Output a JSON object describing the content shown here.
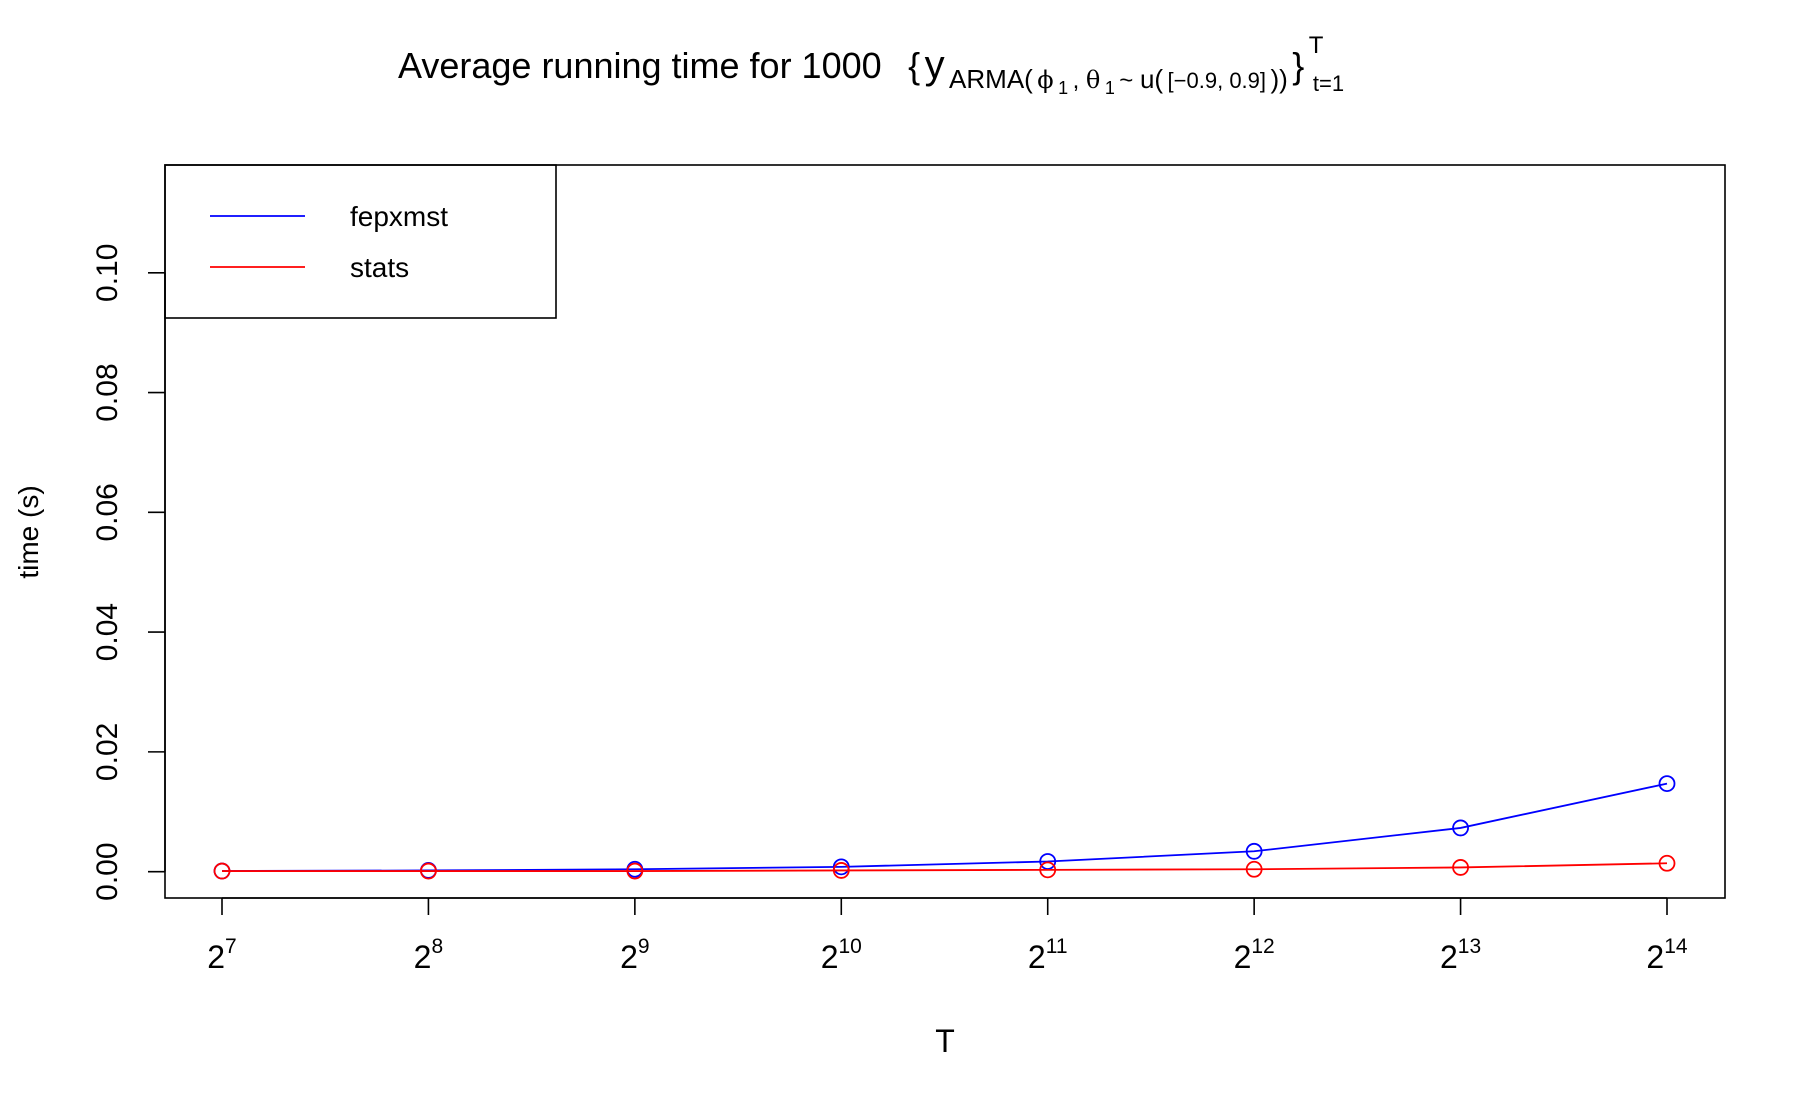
{
  "chart_data": {
    "type": "line",
    "title": {
      "main": "Average running time for 1000",
      "open_brace": "{",
      "y": "y",
      "sub_prefix": "ARMA(",
      "phi": "ϕ",
      "phi_sub": "1",
      "comma": ", ",
      "theta": "θ",
      "theta_sub": "1",
      "tilde": " ~ ",
      "dist": "u(",
      "range": "[−0.9, 0.9]",
      "close_sub": "))",
      "close_brace": "}",
      "sup": "T",
      "sub": "t=1"
    },
    "xlabel": "T",
    "ylabel": "time (s)",
    "x_tick_base": "2",
    "x_exponents": [
      "7",
      "8",
      "9",
      "10",
      "11",
      "12",
      "13",
      "14"
    ],
    "x_values": [
      128,
      256,
      512,
      1024,
      2048,
      4096,
      8192,
      16384
    ],
    "y_ticks": [
      "0.00",
      "0.02",
      "0.04",
      "0.06",
      "0.08",
      "0.10"
    ],
    "y_tick_values": [
      0.0,
      0.02,
      0.04,
      0.06,
      0.08,
      0.1
    ],
    "ylim": [
      -0.0044,
      0.118
    ],
    "x_scale": "log2",
    "legend_position": "top-left",
    "series": [
      {
        "name": "fepxmst",
        "color": "#0000ff",
        "values": [
          0.0001,
          0.0002,
          0.0004,
          0.0008,
          0.0017,
          0.0034,
          0.0073,
          0.0147
        ]
      },
      {
        "name": "stats",
        "color": "#ff0000",
        "values": [
          0.0001,
          0.0001,
          0.0001,
          0.0002,
          0.0003,
          0.0004,
          0.0007,
          0.0014
        ]
      }
    ]
  }
}
